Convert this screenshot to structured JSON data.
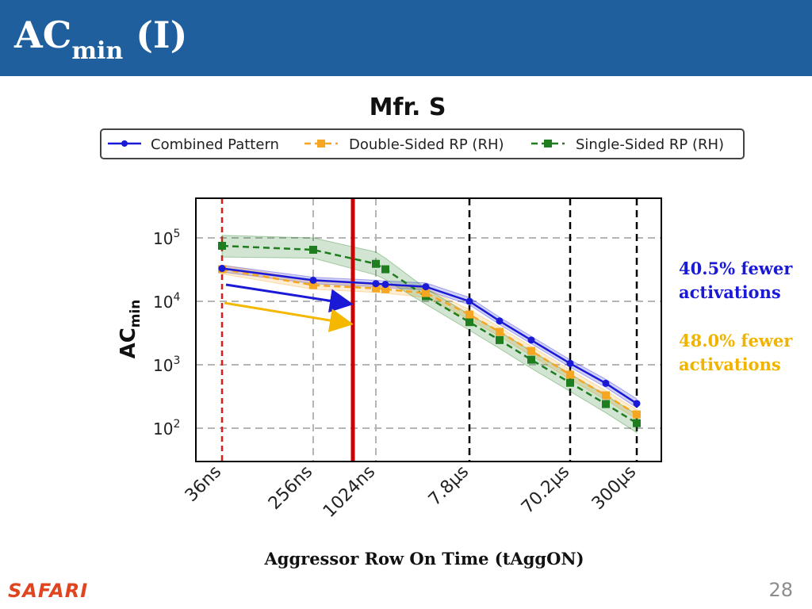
{
  "slide": {
    "title_main": "AC",
    "title_sub": "min",
    "title_suffix": " (I)",
    "logo": "SAFARI",
    "page_number": "28"
  },
  "annotations": [
    {
      "text": "40.5% fewer activations",
      "color": "#1a1ad6"
    },
    {
      "text": "48.0% fewer activations",
      "color": "#f0b400"
    }
  ],
  "colors": {
    "title_bar": "#205f9e",
    "blue": "#1a1ad6",
    "orange": "#f5a623",
    "green": "#1e7d1e",
    "red_marker": "#cc0000"
  },
  "chart_data": {
    "type": "line",
    "title": "Mfr. S",
    "xlabel": "Aggressor Row On Time (tAggON)",
    "ylabel_main": "AC",
    "ylabel_sub": "min",
    "y_scale": "log",
    "ylim": [
      60,
      400000
    ],
    "y_ticks": [
      {
        "value": 100,
        "label": "10",
        "exp": "2"
      },
      {
        "value": 1000,
        "label": "10",
        "exp": "3"
      },
      {
        "value": 10000,
        "label": "10",
        "exp": "4"
      },
      {
        "value": 100000,
        "label": "10",
        "exp": "5"
      }
    ],
    "x_ticks": [
      "36ns",
      "256ns",
      "1024ns",
      "7.8µs",
      "70.2µs",
      "300µs"
    ],
    "legend_placement": "top",
    "grid": true,
    "series": [
      {
        "name": "Combined Pattern",
        "style": "solid",
        "marker": "circle",
        "color": "#1a1ad6",
        "x": [
          "36ns",
          "256ns",
          "1024ns",
          "1.3µs",
          "2.8µs",
          "7.8µs",
          "15µs",
          "33µs",
          "70.2µs",
          "150µs",
          "300µs"
        ],
        "values": [
          33000,
          21500,
          19000,
          18500,
          17000,
          10000,
          4900,
          2450,
          1050,
          510,
          245
        ],
        "band_low": [
          29000,
          19000,
          17000,
          16500,
          15000,
          8800,
          4300,
          2150,
          920,
          440,
          210
        ],
        "band_high": [
          37000,
          24000,
          21500,
          21000,
          19500,
          11500,
          5600,
          2800,
          1200,
          590,
          290
        ]
      },
      {
        "name": "Double-Sided RP (RH)",
        "style": "dashed",
        "marker": "square",
        "color": "#f5a623",
        "x": [
          "36ns",
          "256ns",
          "1024ns",
          "1.3µs",
          "2.8µs",
          "7.8µs",
          "15µs",
          "33µs",
          "70.2µs",
          "150µs",
          "300µs"
        ],
        "values": [
          32000,
          18000,
          16000,
          15500,
          13500,
          6200,
          3300,
          1650,
          700,
          330,
          165
        ],
        "band_low": [
          27000,
          15500,
          13800,
          13400,
          11500,
          5200,
          2800,
          1400,
          590,
          280,
          140
        ],
        "band_high": [
          37500,
          21000,
          18500,
          18000,
          16000,
          7400,
          3900,
          1950,
          830,
          390,
          195
        ]
      },
      {
        "name": "Single-Sided RP (RH)",
        "style": "dashed",
        "marker": "square",
        "color": "#1e7d1e",
        "x": [
          "36ns",
          "256ns",
          "1024ns",
          "1.3µs",
          "2.8µs",
          "7.8µs",
          "15µs",
          "33µs",
          "70.2µs",
          "150µs",
          "300µs"
        ],
        "values": [
          75000,
          65000,
          39000,
          32000,
          12000,
          4700,
          2450,
          1200,
          520,
          240,
          120
        ],
        "band_low": [
          50000,
          48000,
          26000,
          22000,
          9000,
          3500,
          1800,
          880,
          380,
          175,
          85
        ],
        "band_high": [
          110000,
          100000,
          60000,
          48000,
          16000,
          6200,
          3300,
          1650,
          720,
          330,
          165
        ]
      }
    ]
  }
}
